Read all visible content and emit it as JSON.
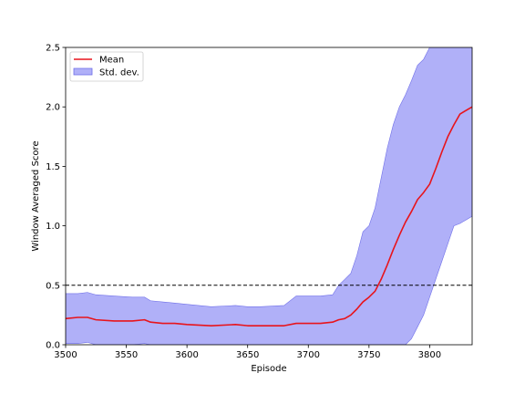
{
  "chart_data": {
    "type": "line",
    "xlabel": "Episode",
    "ylabel": "Window Averaged Score",
    "xlim": [
      3500,
      3835
    ],
    "ylim": [
      0.0,
      2.5
    ],
    "xticks": [
      3500,
      3550,
      3600,
      3650,
      3700,
      3750,
      3800
    ],
    "yticks": [
      0.0,
      0.5,
      1.0,
      1.5,
      2.0,
      2.5
    ],
    "xtick_labels": [
      "3500",
      "3550",
      "3600",
      "3650",
      "3700",
      "3750",
      "3800"
    ],
    "ytick_labels": [
      "0.0",
      "0.5",
      "1.0",
      "1.5",
      "2.0",
      "2.5"
    ],
    "grid": false,
    "legend_position": "upper-left",
    "threshold_line": {
      "y": 0.5,
      "style": "dashed",
      "color": "#000000"
    },
    "series": [
      {
        "name": "Mean",
        "type": "line",
        "color": "#e8141b",
        "x": [
          3500,
          3510,
          3518,
          3525,
          3540,
          3555,
          3565,
          3570,
          3580,
          3590,
          3600,
          3620,
          3640,
          3650,
          3660,
          3680,
          3690,
          3700,
          3710,
          3720,
          3725,
          3730,
          3735,
          3740,
          3745,
          3750,
          3755,
          3760,
          3765,
          3770,
          3775,
          3780,
          3785,
          3790,
          3795,
          3800,
          3805,
          3810,
          3815,
          3820,
          3825,
          3830,
          3835
        ],
        "y": [
          0.22,
          0.23,
          0.23,
          0.21,
          0.2,
          0.2,
          0.21,
          0.19,
          0.18,
          0.18,
          0.17,
          0.16,
          0.17,
          0.16,
          0.16,
          0.16,
          0.18,
          0.18,
          0.18,
          0.19,
          0.21,
          0.22,
          0.25,
          0.3,
          0.36,
          0.4,
          0.45,
          0.55,
          0.67,
          0.8,
          0.92,
          1.03,
          1.12,
          1.22,
          1.28,
          1.35,
          1.48,
          1.62,
          1.75,
          1.85,
          1.94,
          1.97,
          2.0
        ]
      },
      {
        "name": "Std. dev.",
        "type": "band",
        "color": "#b0b0f8",
        "edge_color": "#6f6fe8",
        "x": [
          3500,
          3510,
          3518,
          3525,
          3540,
          3555,
          3565,
          3570,
          3580,
          3590,
          3600,
          3620,
          3640,
          3650,
          3660,
          3680,
          3690,
          3700,
          3710,
          3720,
          3725,
          3730,
          3735,
          3740,
          3745,
          3750,
          3755,
          3760,
          3765,
          3770,
          3775,
          3780,
          3785,
          3790,
          3795,
          3800,
          3805,
          3810,
          3815,
          3820,
          3825,
          3830,
          3835
        ],
        "upper": [
          0.43,
          0.43,
          0.44,
          0.42,
          0.41,
          0.4,
          0.4,
          0.37,
          0.36,
          0.35,
          0.34,
          0.32,
          0.33,
          0.32,
          0.32,
          0.33,
          0.41,
          0.41,
          0.41,
          0.42,
          0.5,
          0.55,
          0.6,
          0.75,
          0.95,
          1.0,
          1.15,
          1.4,
          1.65,
          1.85,
          2.0,
          2.1,
          2.22,
          2.35,
          2.4,
          2.5,
          2.5,
          2.5,
          2.5,
          2.5,
          2.5,
          2.5,
          2.5
        ],
        "lower": [
          0.01,
          0.01,
          0.02,
          0.0,
          0.0,
          0.0,
          0.01,
          0.0,
          0.0,
          0.0,
          0.0,
          0.0,
          0.0,
          0.0,
          0.0,
          0.0,
          0.0,
          0.0,
          0.0,
          0.0,
          0.0,
          0.0,
          0.0,
          0.0,
          0.0,
          0.0,
          0.0,
          0.0,
          0.0,
          0.0,
          0.0,
          0.0,
          0.05,
          0.15,
          0.25,
          0.4,
          0.55,
          0.7,
          0.85,
          1.0,
          1.02,
          1.05,
          1.08
        ]
      }
    ]
  }
}
